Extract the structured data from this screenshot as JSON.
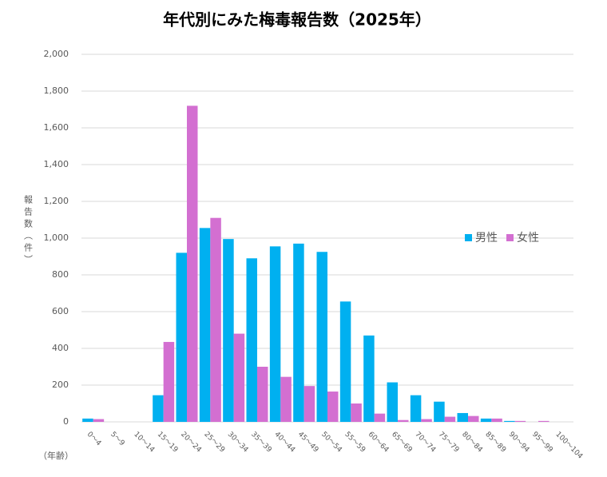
{
  "chart_data": {
    "type": "bar",
    "title": "年代別にみた梅毒報告数（2025年）",
    "y_label": "報告数（件）",
    "x_label": "（年齢）",
    "categories": [
      "0〜4",
      "5〜9",
      "10〜14",
      "15〜19",
      "20〜24",
      "25〜29",
      "30〜34",
      "35〜39",
      "40〜44",
      "45〜49",
      "50〜54",
      "55〜59",
      "60〜64",
      "65〜69",
      "70〜74",
      "75〜79",
      "80〜84",
      "85〜89",
      "90〜94",
      "95〜99",
      "100〜104"
    ],
    "series": [
      {
        "name": "男性",
        "color": "#00b0f0",
        "values": [
          18,
          0,
          0,
          145,
          920,
          1055,
          995,
          890,
          955,
          970,
          925,
          655,
          470,
          215,
          145,
          110,
          48,
          18,
          5,
          0,
          0
        ]
      },
      {
        "name": "女性",
        "color": "#d36fd1",
        "values": [
          15,
          0,
          0,
          435,
          1720,
          1110,
          480,
          300,
          245,
          195,
          165,
          100,
          45,
          10,
          15,
          28,
          32,
          18,
          5,
          5,
          0
        ]
      }
    ],
    "ylim": [
      0,
      2000
    ],
    "yticks": [
      0,
      200,
      400,
      600,
      800,
      {
        "value": 1000,
        "label": "1,000"
      },
      {
        "value": 1200,
        "label": "1,200"
      },
      {
        "value": 1400,
        "label": "1,400"
      },
      {
        "value": 1600,
        "label": "1,600"
      },
      {
        "value": 1800,
        "label": "1,800"
      },
      {
        "value": 2000,
        "label": "2,000"
      }
    ],
    "grid": true,
    "legend": "right"
  }
}
